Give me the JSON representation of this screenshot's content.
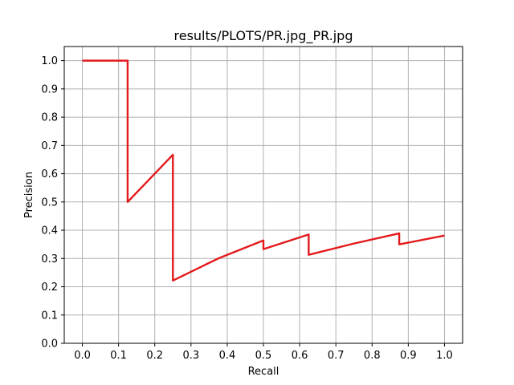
{
  "chart_data": {
    "type": "line",
    "title": "results/PLOTS/PR.jpg_PR.jpg",
    "xlabel": "Recall",
    "ylabel": "Precision",
    "xlim": [
      -0.05,
      1.05
    ],
    "ylim": [
      0.0,
      1.05
    ],
    "grid": true,
    "xticks": [
      "0.0",
      "0.1",
      "0.2",
      "0.3",
      "0.4",
      "0.5",
      "0.6",
      "0.7",
      "0.8",
      "0.9",
      "1.0"
    ],
    "yticks": [
      "0.0",
      "0.1",
      "0.2",
      "0.3",
      "0.4",
      "0.5",
      "0.6",
      "0.7",
      "0.8",
      "0.9",
      "1.0"
    ],
    "series": [
      {
        "color": "#e31a1c",
        "x": [
          0.0,
          0.125,
          0.125,
          0.25,
          0.25,
          0.375,
          0.5,
          0.5,
          0.625,
          0.625,
          0.75,
          0.875,
          0.875,
          1.0
        ],
        "y": [
          1.0,
          1.0,
          0.5,
          0.667,
          0.222,
          0.3,
          0.364,
          0.333,
          0.385,
          0.313,
          0.353,
          0.389,
          0.35,
          0.381
        ]
      }
    ]
  }
}
